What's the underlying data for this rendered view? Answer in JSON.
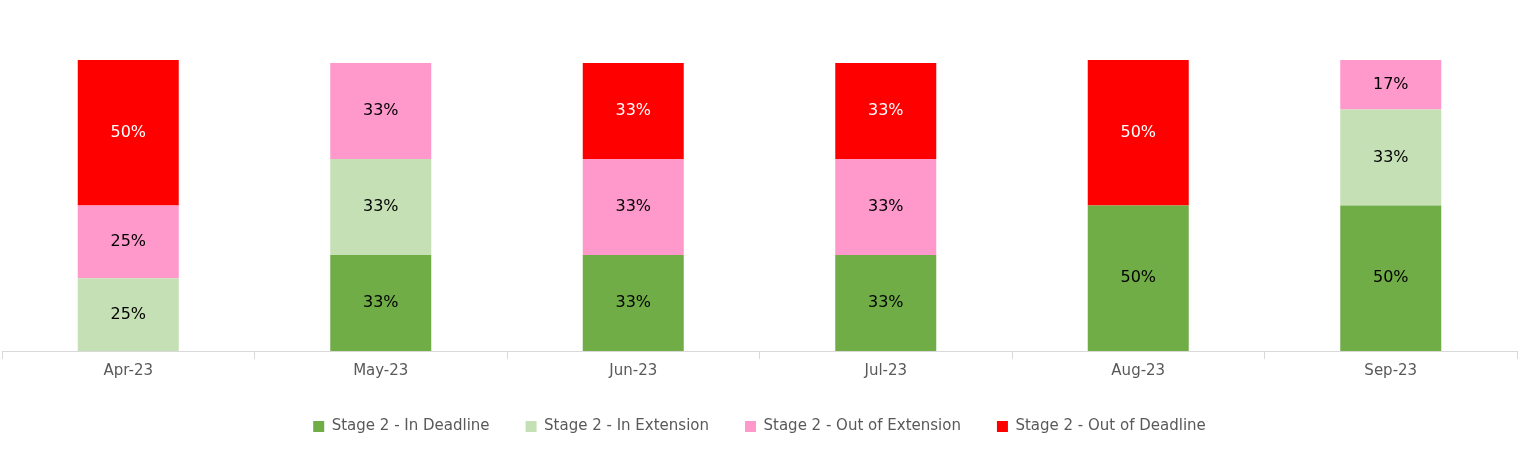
{
  "chart_data": {
    "type": "bar",
    "stacked": true,
    "categories": [
      "Apr-23",
      "May-23",
      "Jun-23",
      "Jul-23",
      "Aug-23",
      "Sep-23"
    ],
    "ylim": [
      0,
      100
    ],
    "tick_labels": "x",
    "grid": false,
    "legend": "bottom",
    "series": [
      {
        "name": "Stage 2 - In Deadline",
        "color": "#70ad47",
        "values": [
          null,
          33,
          33,
          33,
          50,
          50
        ],
        "value_labels": [
          null,
          "33%",
          "33%",
          "33%",
          "50%",
          "50%"
        ]
      },
      {
        "name": "Stage 2 - In Extension",
        "color": "#c5e0b4",
        "values": [
          25,
          33,
          null,
          null,
          null,
          33
        ],
        "value_labels": [
          "25%",
          "33%",
          null,
          null,
          null,
          "33%"
        ]
      },
      {
        "name": "Stage 2 - Out of Extension",
        "color": "#ff99cc",
        "values": [
          25,
          33,
          33,
          33,
          null,
          17
        ],
        "value_labels": [
          "25%",
          "33%",
          "33%",
          "33%",
          null,
          "17%"
        ]
      },
      {
        "name": "Stage 2 - Out of Deadline",
        "color": "#ff0000",
        "values": [
          50,
          null,
          33,
          33,
          50,
          null
        ],
        "value_labels": [
          "50%",
          null,
          "33%",
          "33%",
          "50%",
          null
        ]
      }
    ]
  }
}
